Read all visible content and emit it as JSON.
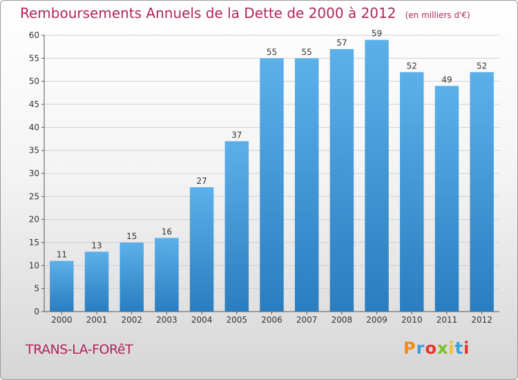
{
  "header": {
    "title": "Remboursements Annuels de la Dette de 2000 à 2012",
    "unit": "(en milliers d'€)"
  },
  "footer": {
    "commune": "TRANS-LA-FORêT",
    "logo": "Proxiti",
    "logo_colors": [
      "#f28c1c",
      "#3aa0d8",
      "#e8332a",
      "#7bbf2a",
      "#f2c21c",
      "#3aa0d8",
      "#e8332a"
    ]
  },
  "colors": {
    "title": "#b0245a",
    "bar_top": "#5cb0ea",
    "bar_bottom": "#2a7dbf",
    "grid": "#d0d0d0",
    "axis": "#555555",
    "label": "#333333"
  },
  "chart_data": {
    "type": "bar",
    "categories": [
      "2000",
      "2001",
      "2002",
      "2003",
      "2004",
      "2005",
      "2006",
      "2007",
      "2008",
      "2009",
      "2010",
      "2011",
      "2012"
    ],
    "values": [
      11,
      13,
      15,
      16,
      27,
      37,
      55,
      55,
      57,
      59,
      52,
      49,
      52
    ],
    "title": "Remboursements Annuels de la Dette de 2000 à 2012",
    "xlabel": "",
    "ylabel": "",
    "ylim": [
      0,
      60
    ],
    "yticks": [
      0,
      5,
      10,
      15,
      20,
      25,
      30,
      35,
      40,
      45,
      50,
      55,
      60
    ],
    "grid": true,
    "data_labels": true
  }
}
